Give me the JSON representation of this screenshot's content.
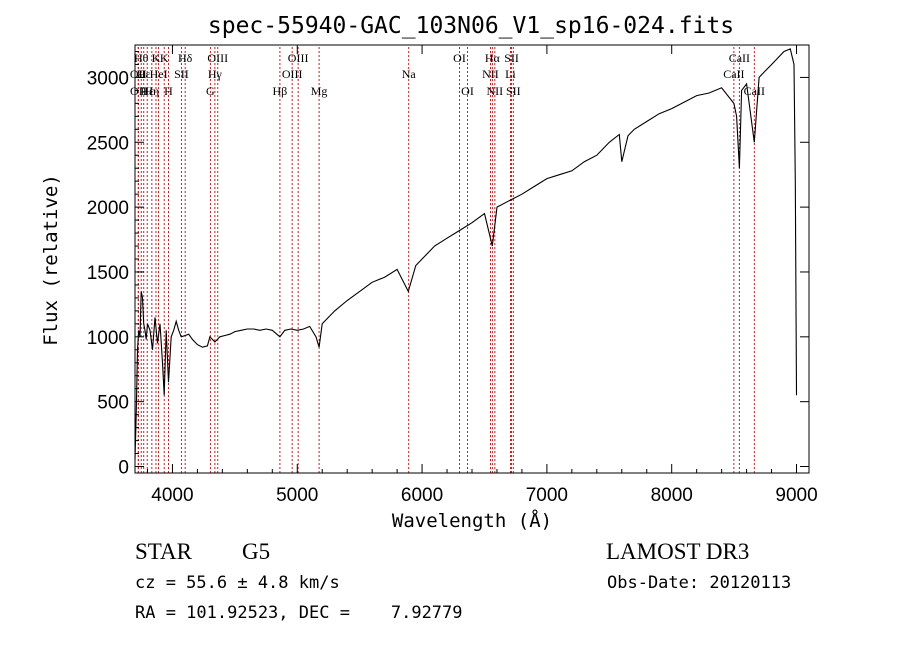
{
  "chart_data": {
    "type": "line",
    "title": "spec-55940-GAC_103N06_V1_sp16-024.fits",
    "xlabel": "Wavelength (Å)",
    "ylabel": "Flux (relative)",
    "xlim": [
      3700,
      9100
    ],
    "ylim": [
      -50,
      3250
    ],
    "xticks": [
      4000,
      5000,
      6000,
      7000,
      8000,
      9000
    ],
    "yticks": [
      0,
      500,
      1000,
      1500,
      2000,
      2500,
      3000
    ],
    "line_color": "#000000",
    "marker_color": "#cc0000",
    "series": [
      {
        "name": "spectrum",
        "x": [
          3700,
          3710,
          3720,
          3730,
          3740,
          3750,
          3760,
          3770,
          3780,
          3790,
          3800,
          3820,
          3840,
          3860,
          3880,
          3900,
          3920,
          3934,
          3950,
          3968,
          3990,
          4010,
          4030,
          4050,
          4070,
          4102,
          4130,
          4160,
          4200,
          4240,
          4280,
          4300,
          4340,
          4380,
          4420,
          4460,
          4500,
          4550,
          4600,
          4650,
          4700,
          4750,
          4800,
          4861,
          4900,
          4950,
          5000,
          5050,
          5100,
          5150,
          5175,
          5200,
          5300,
          5400,
          5500,
          5600,
          5700,
          5800,
          5890,
          5950,
          6000,
          6100,
          6200,
          6300,
          6400,
          6500,
          6563,
          6600,
          6700,
          6800,
          6900,
          7000,
          7100,
          7200,
          7300,
          7400,
          7500,
          7580,
          7600,
          7650,
          7700,
          7800,
          7900,
          8000,
          8100,
          8200,
          8300,
          8400,
          8498,
          8520,
          8542,
          8560,
          8600,
          8662,
          8700,
          8750,
          8800,
          8850,
          8900,
          8950,
          8980,
          8990,
          9000
        ],
        "y": [
          50,
          400,
          900,
          1050,
          1000,
          1350,
          1300,
          1100,
          1050,
          980,
          1100,
          1050,
          900,
          1150,
          950,
          1100,
          800,
          550,
          1050,
          650,
          1000,
          1050,
          1120,
          1050,
          1000,
          1010,
          1020,
          980,
          940,
          920,
          930,
          1000,
          960,
          1000,
          1010,
          1020,
          1040,
          1050,
          1060,
          1060,
          1050,
          1060,
          1050,
          1000,
          1050,
          1060,
          1050,
          1060,
          1080,
          1000,
          920,
          1100,
          1200,
          1280,
          1350,
          1420,
          1460,
          1520,
          1350,
          1550,
          1600,
          1700,
          1760,
          1820,
          1880,
          1950,
          1700,
          2000,
          2050,
          2100,
          2160,
          2220,
          2250,
          2280,
          2350,
          2400,
          2500,
          2560,
          2350,
          2550,
          2600,
          2660,
          2720,
          2760,
          2810,
          2860,
          2880,
          2920,
          2800,
          2700,
          2300,
          2900,
          2950,
          2500,
          3000,
          3050,
          3100,
          3150,
          3200,
          3220,
          3100,
          2200,
          550
        ]
      }
    ],
    "line_markers": [
      {
        "wl": 3750,
        "row": 1,
        "label": "Hθ"
      },
      {
        "wl": 3726,
        "row": 2,
        "label": "OII"
      },
      {
        "wl": 3727,
        "row": 3,
        "label": "OII"
      },
      {
        "wl": 3770,
        "row": 2,
        "label": "Hε"
      },
      {
        "wl": 3798,
        "row": 3,
        "label": "Hε"
      },
      {
        "wl": 3835,
        "row": 3,
        "label": "Hη"
      },
      {
        "wl": 3868,
        "row": 1,
        "label": "K"
      },
      {
        "wl": 3889,
        "row": 2,
        "label": "HeI"
      },
      {
        "wl": 3934,
        "row": 1,
        "label": "K"
      },
      {
        "wl": 3968,
        "row": 3,
        "label": "H"
      },
      {
        "wl": 4072,
        "row": 2,
        "label": "SII"
      },
      {
        "wl": 4102,
        "row": 1,
        "label": "Hδ"
      },
      {
        "wl": 4304,
        "row": 3,
        "label": "G"
      },
      {
        "wl": 4340,
        "row": 2,
        "label": "Hγ"
      },
      {
        "wl": 4363,
        "row": 1,
        "label": "OIII"
      },
      {
        "wl": 4861,
        "row": 3,
        "label": "Hβ"
      },
      {
        "wl": 4959,
        "row": 2,
        "label": "OIII"
      },
      {
        "wl": 5007,
        "row": 1,
        "label": "OIII"
      },
      {
        "wl": 5175,
        "row": 3,
        "label": "Mg"
      },
      {
        "wl": 5893,
        "row": 2,
        "label": "Na"
      },
      {
        "wl": 6300,
        "row": 1,
        "label": "OI"
      },
      {
        "wl": 6364,
        "row": 3,
        "label": "OI"
      },
      {
        "wl": 6548,
        "row": 2,
        "label": "NII"
      },
      {
        "wl": 6563,
        "row": 1,
        "label": "Hα"
      },
      {
        "wl": 6583,
        "row": 3,
        "label": "NII"
      },
      {
        "wl": 6708,
        "row": 2,
        "label": "Li"
      },
      {
        "wl": 6717,
        "row": 1,
        "label": "SII"
      },
      {
        "wl": 6731,
        "row": 3,
        "label": "SII"
      },
      {
        "wl": 8498,
        "row": 2,
        "label": "CaII"
      },
      {
        "wl": 8542,
        "row": 1,
        "label": "CaII"
      },
      {
        "wl": 8662,
        "row": 3,
        "label": "CaII"
      }
    ]
  },
  "info": {
    "object_class": "STAR",
    "subclass": "G5",
    "survey": "LAMOST DR3",
    "redshift_line": "cz = 55.6 ± 4.8 km/s",
    "obs_date_line": "Obs-Date: 20120113",
    "coord_line": "RA = 101.92523, DEC =    7.92779"
  }
}
